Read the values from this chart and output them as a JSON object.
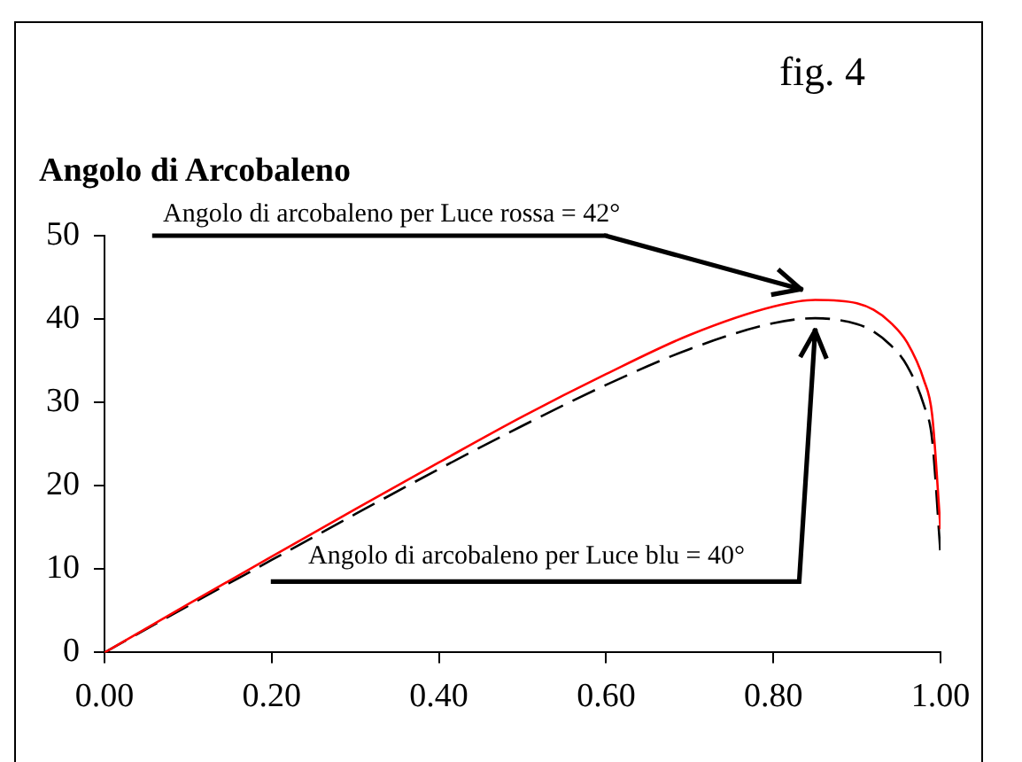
{
  "chart_data": {
    "type": "line",
    "title": "Angolo di Arcobaleno",
    "annotations": [
      "fig. 4",
      "Angolo di arcobaleno per Luce rossa = 42°",
      "Angolo di arcobaleno per Luce blu = 40°"
    ],
    "x": [
      0,
      0.1,
      0.2,
      0.3,
      0.4,
      0.5,
      0.6,
      0.7,
      0.8,
      0.85,
      0.9,
      0.92,
      0.94,
      0.96,
      0.98,
      0.99,
      1.0
    ],
    "series": [
      {
        "color": "#ff0000",
        "line_style": "solid",
        "values": [
          0,
          5.8,
          11.5,
          17.2,
          22.8,
          28.3,
          33.4,
          38.1,
          41.5,
          42.3,
          41.9,
          41.1,
          39.6,
          37.2,
          32.7,
          28.5,
          14.8
        ]
      },
      {
        "color": "#000000",
        "line_style": "dashed",
        "values": [
          0,
          5.6,
          11.1,
          16.6,
          22.0,
          27.2,
          32.1,
          36.4,
          39.5,
          40.1,
          39.4,
          38.5,
          36.9,
          34.4,
          29.7,
          25.5,
          11.8
        ]
      }
    ],
    "xlim": [
      0,
      1
    ],
    "xticks": [
      {
        "value": 0,
        "label": "0.00"
      },
      {
        "value": 0.2,
        "label": "0.20"
      },
      {
        "value": 0.4,
        "label": "0.40"
      },
      {
        "value": 0.6,
        "label": "0.60"
      },
      {
        "value": 0.8,
        "label": "0.80"
      },
      {
        "value": 1,
        "label": "1.00"
      }
    ],
    "ylim": [
      0,
      50
    ],
    "yticks": [
      0,
      10,
      20,
      30,
      40,
      50
    ],
    "grid": false,
    "legend": false,
    "marker": "none"
  }
}
